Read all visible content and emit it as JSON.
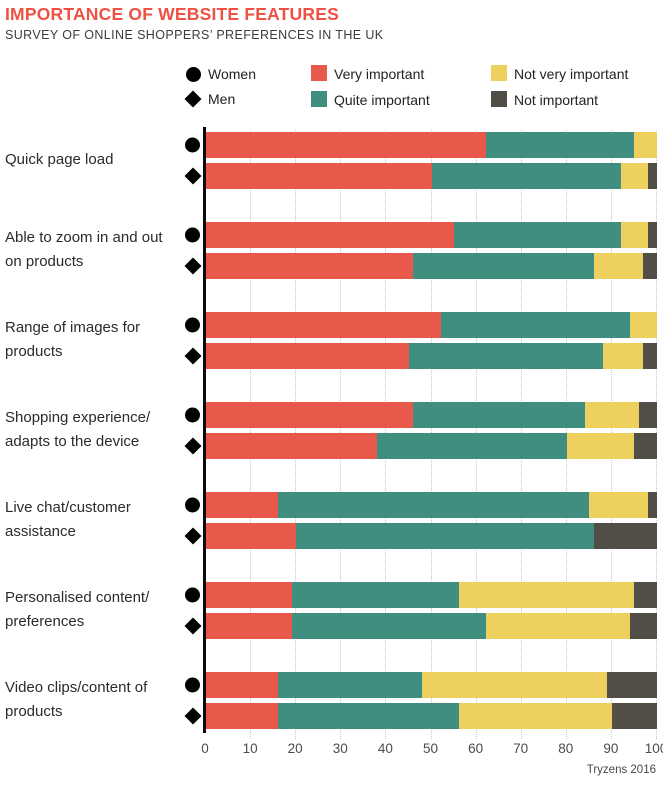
{
  "header": {
    "title": "IMPORTANCE OF WEBSITE FEATURES",
    "subtitle": "SURVEY OF ONLINE SHOPPERS’ PREFERENCES IN THE UK"
  },
  "legend": {
    "markers": [
      {
        "symbol": "circle",
        "label": "Women"
      },
      {
        "symbol": "diamond",
        "label": "Men"
      }
    ],
    "series": [
      {
        "color": "#e8584b",
        "label": "Very important"
      },
      {
        "color": "#3f8e80",
        "label": "Quite important"
      },
      {
        "color": "#eed05f",
        "label": "Not very important"
      },
      {
        "color": "#514e48",
        "label": "Not important"
      }
    ]
  },
  "chart_data": {
    "type": "bar",
    "stacked": true,
    "orientation": "horizontal",
    "title": "IMPORTANCE OF WEBSITE FEATURES",
    "subtitle": "SURVEY OF ONLINE SHOPPERS’ PREFERENCES IN THE UK",
    "xlim": [
      0,
      100
    ],
    "x_ticks": [
      0,
      10,
      20,
      30,
      40,
      50,
      60,
      70,
      80,
      90,
      100
    ],
    "grid": "dotted-vertical",
    "legend_position": "top",
    "segment_labels": [
      "Very important",
      "Quite important",
      "Not very important",
      "Not important"
    ],
    "segment_colors": [
      "#e8584b",
      "#3f8e80",
      "#eed05f",
      "#514e48"
    ],
    "group_markers": [
      "Women",
      "Men"
    ],
    "rows": [
      {
        "category": "Quick page load",
        "women": [
          62,
          33,
          5,
          0
        ],
        "men": [
          50,
          42,
          6,
          2
        ]
      },
      {
        "category": "Able to zoom in and out\non products",
        "women": [
          55,
          37,
          6,
          2
        ],
        "men": [
          46,
          40,
          11,
          3
        ]
      },
      {
        "category": "Range of images for\nproducts",
        "women": [
          52,
          42,
          6,
          0
        ],
        "men": [
          45,
          43,
          9,
          3
        ]
      },
      {
        "category": "Shopping experience/\nadapts to the device",
        "women": [
          46,
          38,
          12,
          4
        ],
        "men": [
          38,
          42,
          15,
          5
        ]
      },
      {
        "category": "Live chat/customer\nassistance",
        "women": [
          16,
          69,
          13,
          2
        ],
        "men": [
          20,
          66,
          0,
          14
        ]
      },
      {
        "category": "Personalised content/\npreferences",
        "women": [
          19,
          37,
          39,
          5
        ],
        "men": [
          19,
          43,
          32,
          6
        ]
      },
      {
        "category": "Video clips/content of\nproducts",
        "women": [
          16,
          32,
          41,
          11
        ],
        "men": [
          16,
          40,
          34,
          10
        ]
      }
    ]
  },
  "footer": {
    "source": "Tryzens 2016"
  }
}
